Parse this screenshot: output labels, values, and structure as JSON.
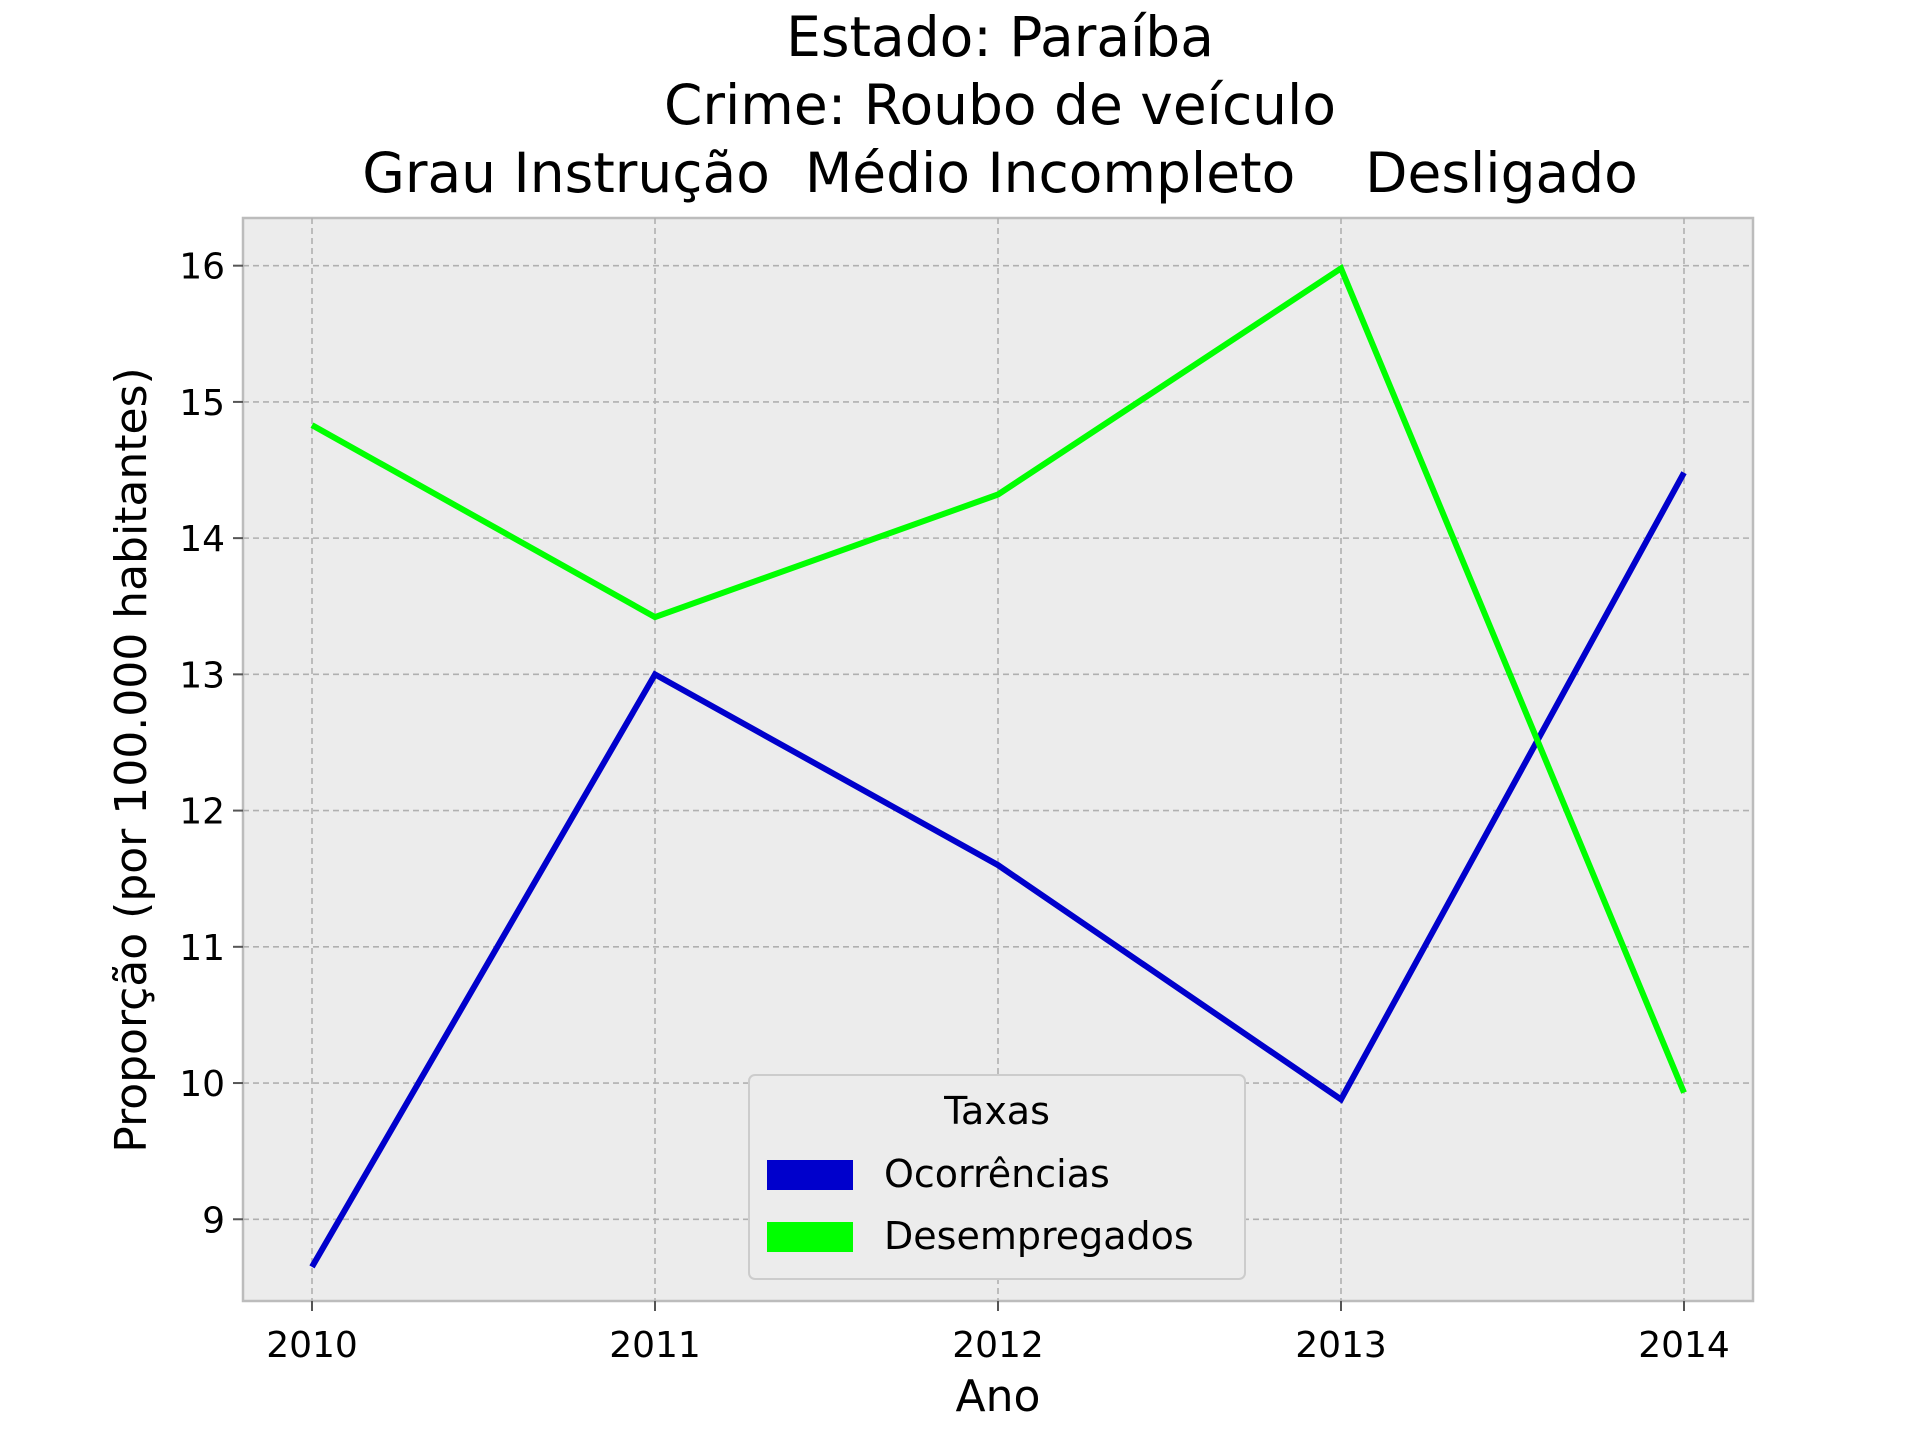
{
  "chart_data": {
    "type": "line",
    "title_lines": [
      "Estado: Paraíba",
      "Crime: Roubo de veículo",
      "Grau Instrução  Médio Incompleto    Desligado"
    ],
    "xlabel": "Ano",
    "ylabel": "Proporção (por 100.000 habitantes)",
    "x": [
      "2010",
      "2011",
      "2012",
      "2013",
      "2014"
    ],
    "ylim": [
      8.4,
      16.35
    ],
    "yticks": [
      "9",
      "10",
      "11",
      "12",
      "13",
      "14",
      "15",
      "16"
    ],
    "grid": true,
    "legend": {
      "title": "Taxas",
      "placement": "lower-center"
    },
    "series": [
      {
        "name": "Ocorrências",
        "color": "#0000cc",
        "values": [
          8.65,
          13.0,
          11.6,
          9.88,
          14.48
        ]
      },
      {
        "name": "Desempregados",
        "color": "#00ff00",
        "values": [
          14.83,
          13.42,
          14.32,
          15.98,
          9.93
        ]
      }
    ]
  }
}
